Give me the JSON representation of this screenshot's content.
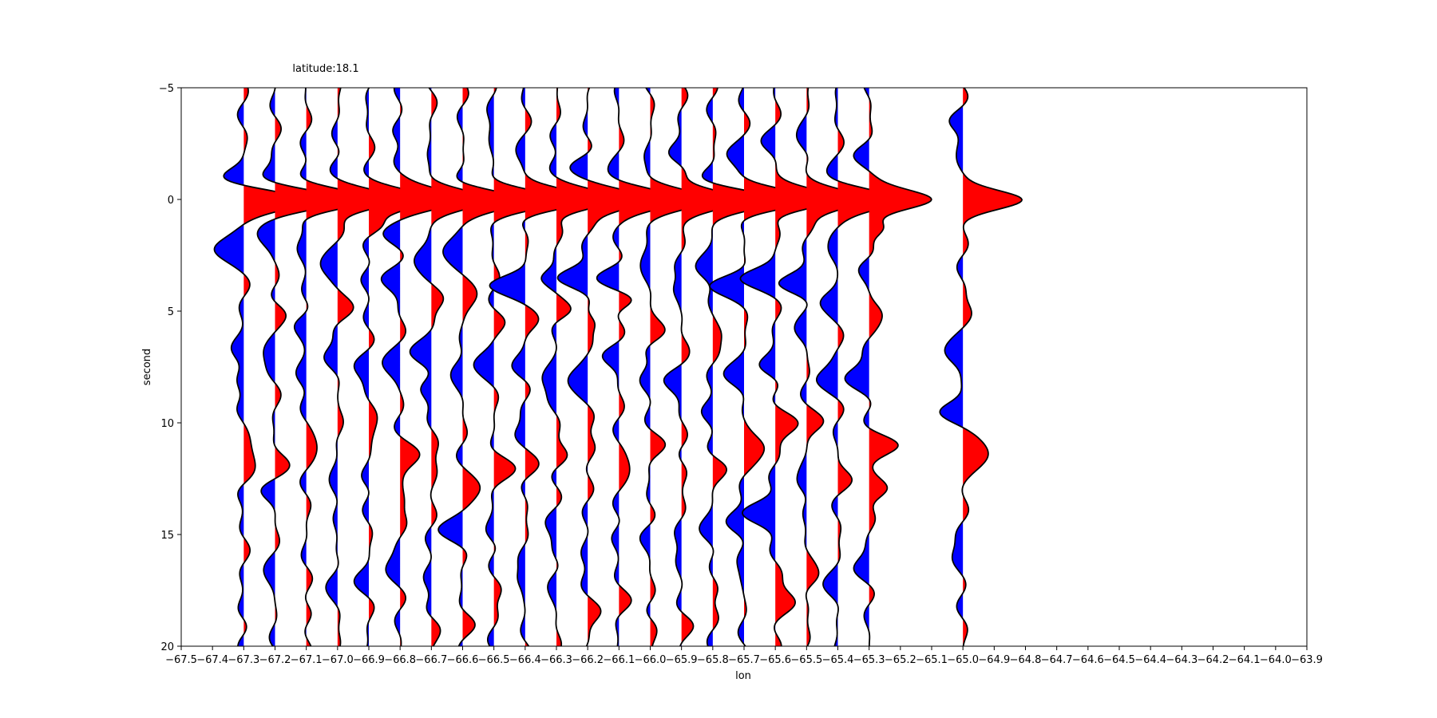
{
  "chart_data": {
    "type": "line",
    "subtype": "seismic-wiggle-traces",
    "title": "latitude:18.1",
    "xlabel": "lon",
    "ylabel": "second",
    "xlim": [
      -67.5,
      -63.9
    ],
    "ylim": [
      20,
      -5
    ],
    "y_inverted": true,
    "grid": false,
    "legend": "none",
    "x_ticks": [
      "−67.5",
      "−67.4",
      "−67.3",
      "−67.2",
      "−67.1",
      "−67.0",
      "−66.9",
      "−66.8",
      "−66.7",
      "−66.6",
      "−66.5",
      "−66.4",
      "−66.3",
      "−66.2",
      "−66.1",
      "−66.0",
      "−65.9",
      "−65.8",
      "−65.7",
      "−65.6",
      "−65.5",
      "−65.4",
      "−65.3",
      "−65.2",
      "−65.1",
      "−65.0",
      "−64.9",
      "−64.8",
      "−64.7",
      "−64.6",
      "−64.5",
      "−64.4",
      "−64.3",
      "−64.2",
      "−64.1",
      "−64.0",
      "−63.9"
    ],
    "y_ticks": [
      "−5",
      "0",
      "5",
      "10",
      "15",
      "20"
    ],
    "positive_fill_color": "#ff0000",
    "negative_fill_color": "#0000ff",
    "trace_line_color": "#000000",
    "traces": [
      {
        "lon": -67.3,
        "events": [
          [
            -1,
            -0.7,
            0.6
          ],
          [
            0,
            2.0,
            0.6
          ],
          [
            2.2,
            -0.9,
            0.7
          ],
          [
            6.8,
            -0.5,
            0.7
          ],
          [
            9.3,
            -0.3,
            0.6
          ],
          [
            11.5,
            0.5,
            0.8
          ],
          [
            13,
            -0.2,
            0.6
          ],
          [
            18.5,
            -0.2,
            0.6
          ]
        ]
      },
      {
        "lon": -67.2,
        "events": [
          [
            -1,
            -0.4,
            0.6
          ],
          [
            0,
            2.0,
            0.6
          ],
          [
            1.7,
            -0.5,
            0.7
          ],
          [
            5,
            0.3,
            0.6
          ],
          [
            6.8,
            -0.4,
            0.7
          ],
          [
            11.8,
            0.3,
            0.7
          ],
          [
            13,
            -0.3,
            0.6
          ],
          [
            17,
            -0.3,
            0.7
          ]
        ]
      },
      {
        "lon": -67.1,
        "events": [
          [
            -1,
            -0.3,
            0.6
          ],
          [
            0,
            2.0,
            0.6
          ],
          [
            2,
            -0.4,
            0.7
          ],
          [
            5.5,
            -0.4,
            0.6
          ],
          [
            8,
            -0.4,
            0.7
          ],
          [
            11,
            0.3,
            0.7
          ],
          [
            18.5,
            0.2,
            0.6
          ]
        ]
      },
      {
        "lon": -67.0,
        "events": [
          [
            -1.5,
            -0.3,
            0.6
          ],
          [
            0,
            2.0,
            0.6
          ],
          [
            3,
            -0.5,
            0.7
          ],
          [
            5,
            0.4,
            0.7
          ],
          [
            7,
            -0.5,
            0.7
          ],
          [
            9,
            0.2,
            0.6
          ],
          [
            13,
            -0.3,
            0.7
          ],
          [
            17,
            -0.3,
            0.7
          ]
        ]
      },
      {
        "lon": -66.9,
        "events": [
          [
            0,
            2.0,
            0.6
          ],
          [
            1.2,
            0.3,
            0.5
          ],
          [
            3.5,
            -0.3,
            0.6
          ],
          [
            7.5,
            -0.4,
            0.7
          ],
          [
            10.5,
            0.3,
            0.7
          ],
          [
            12.5,
            -0.3,
            0.6
          ],
          [
            17,
            -0.3,
            0.7
          ]
        ]
      },
      {
        "lon": -66.8,
        "events": [
          [
            -3,
            -0.3,
            0.6
          ],
          [
            0,
            2.0,
            0.6
          ],
          [
            1.5,
            -0.4,
            0.6
          ],
          [
            3.5,
            -0.5,
            0.7
          ],
          [
            7.5,
            -0.5,
            0.7
          ],
          [
            11.5,
            0.5,
            0.7
          ],
          [
            13.5,
            0.3,
            0.6
          ],
          [
            16.5,
            -0.4,
            0.7
          ]
        ]
      },
      {
        "lon": -66.7,
        "events": [
          [
            -1,
            -0.3,
            0.6
          ],
          [
            0,
            2.0,
            0.6
          ],
          [
            2.5,
            -0.6,
            0.7
          ],
          [
            4.5,
            0.3,
            0.6
          ],
          [
            7,
            -0.6,
            0.7
          ],
          [
            8.5,
            -0.3,
            0.6
          ],
          [
            12,
            0.3,
            0.7
          ],
          [
            17,
            -0.3,
            0.8
          ],
          [
            19,
            0.2,
            0.6
          ]
        ]
      },
      {
        "lon": -66.6,
        "events": [
          [
            -1,
            -0.3,
            0.6
          ],
          [
            0,
            2.0,
            0.6
          ],
          [
            2.2,
            -0.6,
            0.7
          ],
          [
            4.5,
            0.4,
            0.7
          ],
          [
            7.5,
            -0.4,
            0.7
          ],
          [
            13,
            0.5,
            0.7
          ],
          [
            14.8,
            -0.6,
            0.7
          ],
          [
            19,
            0.2,
            0.6
          ]
        ]
      },
      {
        "lon": -66.5,
        "events": [
          [
            -3,
            -0.3,
            0.7
          ],
          [
            0,
            2.0,
            0.6
          ],
          [
            5.5,
            0.3,
            0.6
          ],
          [
            7.2,
            -0.6,
            0.7
          ],
          [
            12,
            0.5,
            0.7
          ],
          [
            15,
            -0.3,
            0.6
          ],
          [
            17.5,
            0.2,
            0.6
          ]
        ]
      },
      {
        "lon": -66.4,
        "events": [
          [
            -2,
            -0.2,
            0.6
          ],
          [
            0,
            2.0,
            0.6
          ],
          [
            3.8,
            -1.0,
            0.6
          ],
          [
            5.5,
            0.3,
            0.6
          ],
          [
            7.5,
            -0.3,
            0.7
          ],
          [
            10.5,
            -0.3,
            0.6
          ],
          [
            12,
            0.3,
            0.7
          ],
          [
            17,
            -0.4,
            0.6
          ]
        ]
      },
      {
        "lon": -66.3,
        "events": [
          [
            -1.5,
            -0.3,
            0.6
          ],
          [
            0,
            2.0,
            0.6
          ],
          [
            3.5,
            -0.4,
            0.5
          ],
          [
            5,
            0.3,
            0.5
          ],
          [
            8,
            -0.6,
            0.7
          ],
          [
            11.5,
            0.3,
            0.6
          ],
          [
            14.5,
            -0.3,
            0.7
          ],
          [
            17,
            -0.3,
            0.6
          ]
        ]
      },
      {
        "lon": -66.2,
        "events": [
          [
            -1.5,
            -0.5,
            0.6
          ],
          [
            0,
            2.0,
            0.6
          ],
          [
            3.5,
            -1.0,
            0.6
          ],
          [
            5.5,
            0.4,
            0.5
          ],
          [
            8,
            -0.6,
            0.7
          ],
          [
            11,
            0.3,
            0.7
          ],
          [
            16,
            -0.3,
            0.7
          ],
          [
            18.5,
            0.3,
            0.6
          ]
        ]
      },
      {
        "lon": -66.1,
        "events": [
          [
            -1,
            -0.3,
            0.6
          ],
          [
            0,
            2.0,
            0.6
          ],
          [
            3.5,
            -0.7,
            0.6
          ],
          [
            4.5,
            0.5,
            0.5
          ],
          [
            7,
            -0.4,
            0.6
          ],
          [
            12,
            0.3,
            0.7
          ],
          [
            15,
            -0.3,
            0.6
          ],
          [
            18,
            0.2,
            0.6
          ]
        ]
      },
      {
        "lon": -66.0,
        "events": [
          [
            -1,
            -0.3,
            0.6
          ],
          [
            0,
            2.0,
            0.6
          ],
          [
            2.5,
            -0.4,
            0.7
          ],
          [
            6,
            0.4,
            0.6
          ],
          [
            8,
            -0.4,
            0.7
          ],
          [
            11,
            0.3,
            0.6
          ],
          [
            15,
            -0.2,
            0.7
          ],
          [
            19,
            0.2,
            0.6
          ]
        ]
      },
      {
        "lon": -65.9,
        "events": [
          [
            -2,
            -0.4,
            0.6
          ],
          [
            0,
            2.0,
            0.6
          ],
          [
            4,
            -0.4,
            0.6
          ],
          [
            6.5,
            0.3,
            0.6
          ],
          [
            8,
            -0.5,
            0.7
          ],
          [
            12,
            0.2,
            0.6
          ],
          [
            16,
            -0.3,
            0.7
          ],
          [
            19,
            0.2,
            0.6
          ]
        ]
      },
      {
        "lon": -65.8,
        "events": [
          [
            -1,
            -0.3,
            0.6
          ],
          [
            0,
            2.0,
            0.6
          ],
          [
            3.2,
            -0.6,
            0.7
          ],
          [
            6,
            0.3,
            0.6
          ],
          [
            9.5,
            -0.4,
            0.7
          ],
          [
            12,
            0.3,
            0.6
          ],
          [
            15,
            -0.4,
            0.7
          ],
          [
            17.5,
            0.2,
            0.6
          ]
        ]
      },
      {
        "lon": -65.7,
        "events": [
          [
            -2,
            -0.5,
            0.6
          ],
          [
            0,
            2.0,
            0.6
          ],
          [
            3.8,
            -1.0,
            0.6
          ],
          [
            8,
            -0.6,
            0.7
          ],
          [
            11,
            0.7,
            0.7
          ],
          [
            14.5,
            -0.6,
            0.7
          ],
          [
            17,
            -0.2,
            0.6
          ]
        ]
      },
      {
        "lon": -65.6,
        "events": [
          [
            -2.5,
            -0.3,
            0.6
          ],
          [
            0,
            2.0,
            0.6
          ],
          [
            3.5,
            -1.0,
            0.6
          ],
          [
            7.5,
            -0.5,
            0.6
          ],
          [
            10,
            0.7,
            0.7
          ],
          [
            14,
            -1.1,
            0.7
          ],
          [
            18,
            0.7,
            0.7
          ]
        ]
      },
      {
        "lon": -65.5,
        "events": [
          [
            -2.5,
            -0.3,
            0.6
          ],
          [
            0,
            2.0,
            0.6
          ],
          [
            3.8,
            -0.9,
            0.6
          ],
          [
            6,
            -0.3,
            0.6
          ],
          [
            10,
            0.4,
            0.6
          ],
          [
            12.8,
            -0.4,
            0.6
          ],
          [
            17,
            0.4,
            0.6
          ]
        ]
      },
      {
        "lon": -65.4,
        "events": [
          [
            -1,
            -0.3,
            0.6
          ],
          [
            0,
            2.0,
            0.6
          ],
          [
            2.5,
            -0.3,
            0.6
          ],
          [
            4.5,
            -0.5,
            0.6
          ],
          [
            8,
            -0.6,
            0.7
          ],
          [
            12.5,
            0.3,
            0.6
          ],
          [
            17.5,
            -0.4,
            0.7
          ]
        ]
      },
      {
        "lon": -65.3,
        "events": [
          [
            -2,
            -0.3,
            0.6
          ],
          [
            0,
            2.0,
            0.6
          ],
          [
            1.3,
            0.6,
            0.5
          ],
          [
            3,
            -0.3,
            0.6
          ],
          [
            5,
            0.4,
            0.6
          ],
          [
            8,
            -0.8,
            0.7
          ],
          [
            11,
            0.8,
            0.6
          ],
          [
            13,
            0.7,
            0.6
          ],
          [
            16.5,
            -0.4,
            0.7
          ]
        ]
      },
      {
        "lon": -65.0,
        "events": [
          [
            -3.5,
            -0.4,
            0.6
          ],
          [
            -1.5,
            -0.3,
            0.6
          ],
          [
            0,
            2.0,
            0.6
          ],
          [
            5,
            0.2,
            0.6
          ],
          [
            7,
            -0.6,
            0.7
          ],
          [
            9.5,
            -0.6,
            0.6
          ],
          [
            11.5,
            0.9,
            0.8
          ],
          [
            16,
            -0.4,
            0.7
          ]
        ]
      }
    ]
  }
}
